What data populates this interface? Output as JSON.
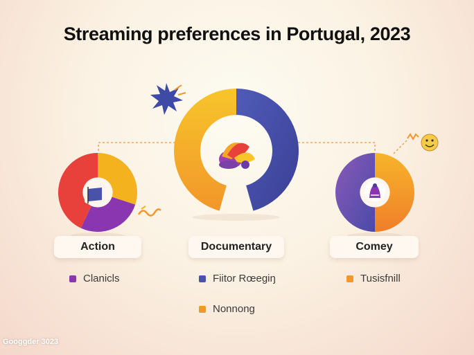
{
  "title": "Streaming preferences in Portugal, 2023",
  "colors": {
    "red": "#e8403a",
    "purple": "#8a36b0",
    "yellow": "#f5b21f",
    "orange": "#f2972a",
    "blue": "#4a52a8",
    "navy": "#3b4aa3"
  },
  "chart_data": [
    {
      "type": "pie",
      "label": "Action",
      "slices": [
        {
          "color": "#f5b21f",
          "value": 0.3
        },
        {
          "color": "#8a36b0",
          "value": 0.27
        },
        {
          "color": "#e8403a",
          "value": 0.43
        }
      ]
    },
    {
      "type": "pie",
      "label": "Documentary",
      "slices": [
        {
          "color": "#f5b21f",
          "value": 0.5
        },
        {
          "color": "#4a52a8",
          "value": 0.5
        }
      ]
    },
    {
      "type": "pie",
      "label": "Comey",
      "slices": [
        {
          "color": "#f2972a",
          "value": 0.5
        },
        {
          "color": "#6f58b5",
          "value": 0.5
        }
      ]
    }
  ],
  "legend": [
    {
      "label": "Clanicls",
      "color": "#8a36b0"
    },
    {
      "label": "Fiitor Rœegiŋ",
      "color": "#4a52a8"
    },
    {
      "label": "Tusisfnill",
      "color": "#f2972a"
    },
    {
      "label": "Nonnong",
      "color": "#f2972a"
    }
  ],
  "footer": "Googgder 3023",
  "icons": [
    "starburst-icon",
    "flower-icon",
    "flag-icon",
    "bird-icon",
    "smiley-icon",
    "squiggle-icon"
  ]
}
